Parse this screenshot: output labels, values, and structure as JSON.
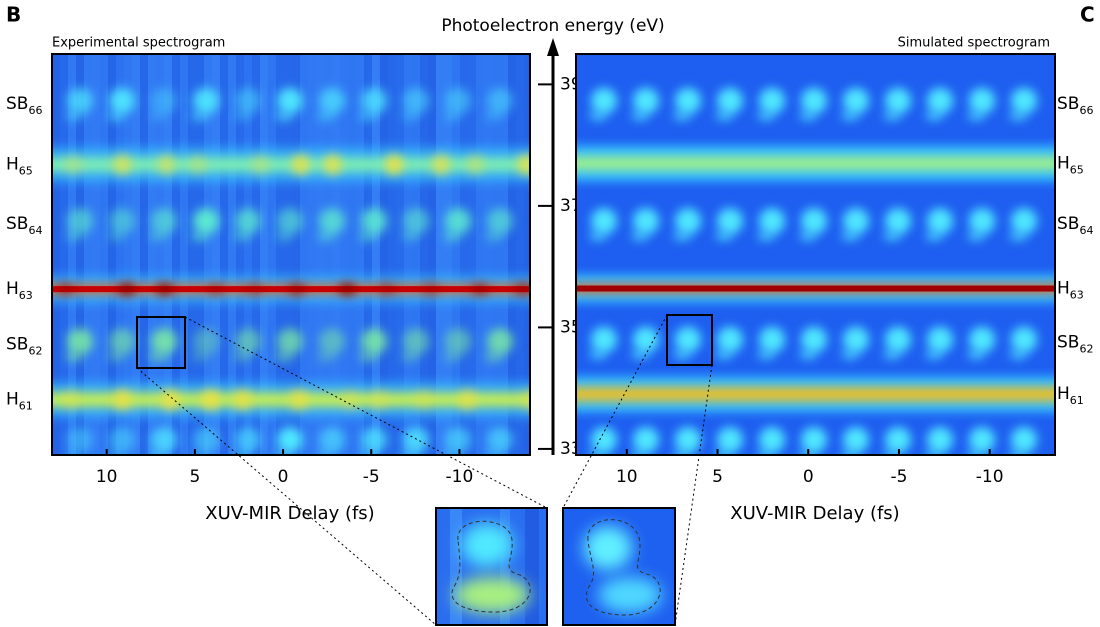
{
  "chart_data": [
    {
      "type": "heatmap",
      "panel": "B",
      "title": "Experimental spectrogram",
      "xlabel": "XUV-MIR Delay (fs)",
      "ylabel": "Photoelectron energy (eV)",
      "xlim": [
        13.1,
        -14
      ],
      "xticks": [
        10,
        5,
        0,
        -5,
        -10
      ],
      "ylim": [
        32.9,
        39.5
      ],
      "yticks": [
        39,
        37,
        35,
        33
      ],
      "bands": [
        {
          "label": "SB",
          "sub": "66",
          "energy": 38.68,
          "color": "#4fe6ff"
        },
        {
          "label": "H",
          "sub": "65",
          "energy": 37.68,
          "color": "#7ff0b0"
        },
        {
          "label": "SB",
          "sub": "64",
          "energy": 36.7,
          "color": "#5ff0d0"
        },
        {
          "label": "H",
          "sub": "63",
          "energy": 35.63,
          "color": "#c80000"
        },
        {
          "label": "SB",
          "sub": "62",
          "energy": 34.72,
          "color": "#7ff0a0"
        },
        {
          "label": "H",
          "sub": "61",
          "energy": 33.81,
          "color": "#c8f050"
        },
        {
          "label": null,
          "sub": null,
          "energy": 33.1,
          "color": "#4fe6ff"
        }
      ]
    },
    {
      "type": "heatmap",
      "panel": "C",
      "title": "Simulated spectrogram",
      "xlabel": "XUV-MIR Delay (fs)",
      "xlim": [
        12.8,
        -13.6
      ],
      "xticks": [
        10,
        5,
        0,
        -5,
        -10
      ],
      "ylim": [
        32.9,
        39.5
      ],
      "bands": [
        {
          "label": "SB",
          "sub": "66",
          "energy": 38.68,
          "color": "#4fe6ff"
        },
        {
          "label": "H",
          "sub": "65",
          "energy": 37.7,
          "color": "#9ff08a"
        },
        {
          "label": "SB",
          "sub": "64",
          "energy": 36.7,
          "color": "#4fe6ff"
        },
        {
          "label": "H",
          "sub": "63",
          "energy": 35.64,
          "color": "#a00000"
        },
        {
          "label": "SB",
          "sub": "62",
          "energy": 34.75,
          "color": "#4fe6ff"
        },
        {
          "label": "H",
          "sub": "61",
          "energy": 33.9,
          "color": "#f0c020"
        },
        {
          "label": null,
          "sub": null,
          "energy": 33.1,
          "color": "#4fe6ff"
        }
      ]
    }
  ]
}
